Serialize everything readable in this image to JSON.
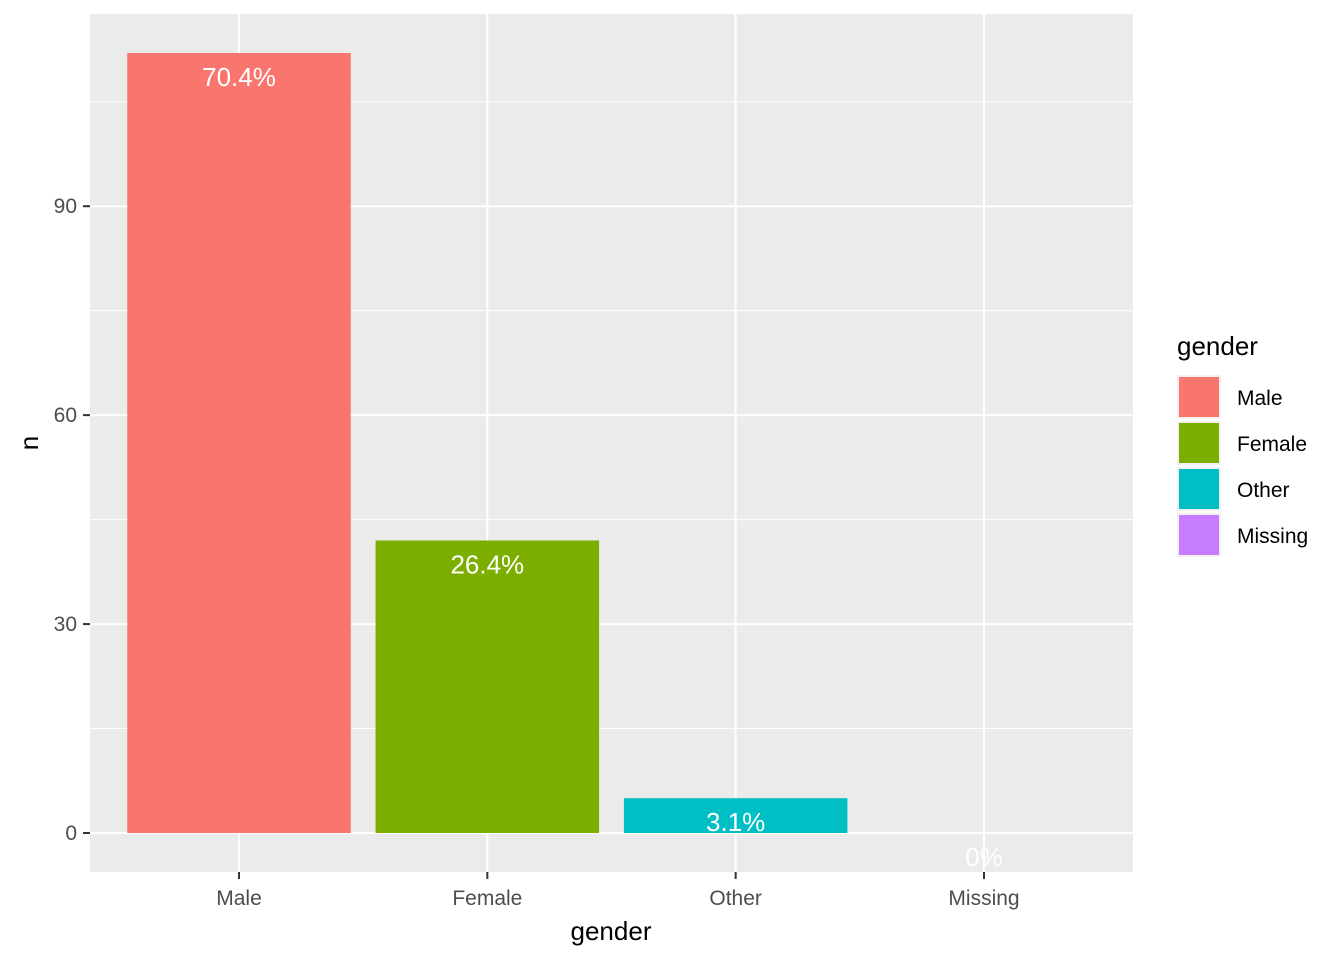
{
  "chart_data": {
    "type": "bar",
    "categories": [
      "Male",
      "Female",
      "Other",
      "Missing"
    ],
    "values": [
      112,
      42,
      5,
      0
    ],
    "data_labels": [
      "70.4%",
      "26.4%",
      "3.1%",
      "0%"
    ],
    "colors": [
      "#F8766D",
      "#7CAE00",
      "#00BFC4",
      "#C77CFF"
    ],
    "xlabel": "gender",
    "ylabel": "n",
    "ylim": [
      -5.6,
      117.6
    ],
    "yticks": [
      0,
      30,
      60,
      90
    ],
    "yticks_labels": [
      "0",
      "30",
      "60",
      "90"
    ],
    "grid": true,
    "legend": {
      "title": "gender",
      "position": "right",
      "entries": [
        "Male",
        "Female",
        "Other",
        "Missing"
      ]
    }
  }
}
